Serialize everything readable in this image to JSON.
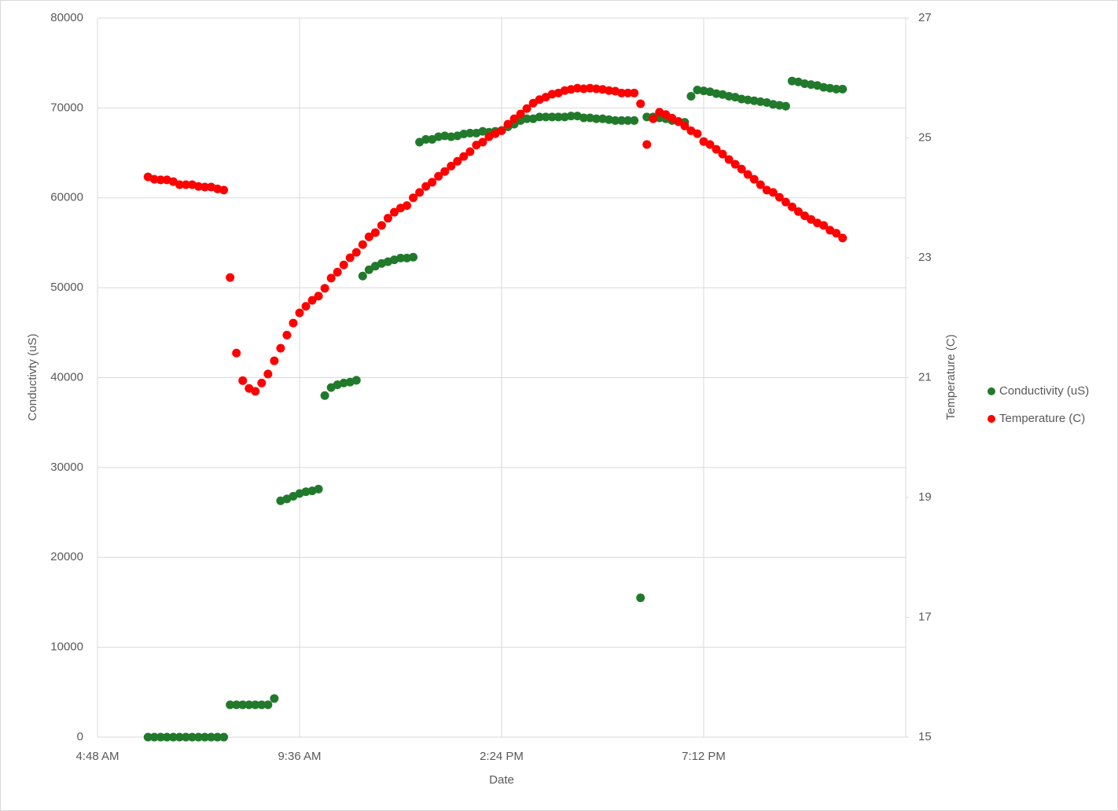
{
  "chart_data": {
    "type": "scatter",
    "x_label": "Date",
    "y_label": "Conductivty (uS)",
    "y2_label": "Temperature (C)",
    "xlim": [
      288,
      1440
    ],
    "xticks": [
      {
        "value": 288,
        "label": "4:48 AM"
      },
      {
        "value": 576,
        "label": "9:36 AM"
      },
      {
        "value": 864,
        "label": "2:24 PM"
      },
      {
        "value": 1152,
        "label": "7:12 PM"
      }
    ],
    "ylim": [
      0,
      80000
    ],
    "yticks": [
      0,
      10000,
      20000,
      30000,
      40000,
      50000,
      60000,
      70000,
      80000
    ],
    "y2lim": [
      15,
      27
    ],
    "y2ticks": [
      15,
      17,
      19,
      21,
      23,
      25,
      27
    ],
    "grid": true,
    "legend": "right",
    "x": [
      360,
      369,
      378,
      387,
      396,
      405,
      414,
      423,
      432,
      441,
      450,
      459,
      468,
      477,
      486,
      495,
      504,
      513,
      522,
      531,
      540,
      549,
      558,
      567,
      576,
      585,
      594,
      603,
      612,
      621,
      630,
      639,
      648,
      657,
      666,
      675,
      684,
      693,
      702,
      711,
      720,
      729,
      738,
      747,
      756,
      765,
      774,
      783,
      792,
      801,
      810,
      819,
      828,
      837,
      846,
      855,
      864,
      873,
      882,
      891,
      900,
      909,
      918,
      927,
      936,
      945,
      954,
      963,
      972,
      981,
      990,
      999,
      1008,
      1017,
      1026,
      1035,
      1044,
      1053,
      1062,
      1071,
      1080,
      1089,
      1098,
      1107,
      1116,
      1125,
      1134,
      1143,
      1152,
      1161,
      1170,
      1179,
      1188,
      1197,
      1206,
      1215,
      1224,
      1233,
      1242,
      1251,
      1260,
      1269,
      1278,
      1287,
      1296,
      1305,
      1314,
      1323,
      1332,
      1341,
      1350
    ],
    "series": [
      {
        "name": "Conductivity (uS)",
        "color": "#217a2b",
        "axis": "y",
        "values": [
          0,
          0,
          0,
          0,
          0,
          0,
          0,
          0,
          0,
          0,
          0,
          0,
          0,
          3600,
          3600,
          3600,
          3600,
          3600,
          3600,
          3600,
          4300,
          26300,
          26500,
          26800,
          27100,
          27300,
          27400,
          27600,
          38000,
          38900,
          39200,
          39400,
          39500,
          39700,
          51300,
          52000,
          52400,
          52700,
          52900,
          53100,
          53300,
          53300,
          53400,
          66200,
          66500,
          66500,
          66800,
          66900,
          66800,
          66900,
          67100,
          67200,
          67200,
          67400,
          67300,
          67400,
          67500,
          67900,
          68200,
          68600,
          68800,
          68800,
          69000,
          69000,
          69000,
          69000,
          69000,
          69100,
          69100,
          68900,
          68900,
          68800,
          68800,
          68700,
          68600,
          68600,
          68600,
          68600,
          15500,
          69000,
          69000,
          68900,
          68800,
          68600,
          68500,
          68400,
          71300,
          72000,
          71900,
          71800,
          71600,
          71500,
          71300,
          71200,
          71000,
          70900,
          70800,
          70700,
          70600,
          70400,
          70300,
          70200,
          73000,
          72900,
          72700,
          72600,
          72500,
          72300,
          72200,
          72100,
          72100
        ]
      },
      {
        "name": "Temperature (C)",
        "color": "#ff0000",
        "axis": "y2",
        "values": [
          24.35,
          24.31,
          24.3,
          24.3,
          24.27,
          24.22,
          24.22,
          24.22,
          24.19,
          24.18,
          24.18,
          24.15,
          24.13,
          22.67,
          21.41,
          20.95,
          20.82,
          20.77,
          20.91,
          21.06,
          21.28,
          21.49,
          21.71,
          21.91,
          22.08,
          22.19,
          22.29,
          22.36,
          22.49,
          22.66,
          22.76,
          22.88,
          23.0,
          23.09,
          23.22,
          23.35,
          23.42,
          23.54,
          23.66,
          23.76,
          23.83,
          23.87,
          24.0,
          24.09,
          24.19,
          24.26,
          24.36,
          24.44,
          24.53,
          24.61,
          24.69,
          24.77,
          24.88,
          24.93,
          25.02,
          25.07,
          25.12,
          25.23,
          25.32,
          25.4,
          25.49,
          25.58,
          25.64,
          25.68,
          25.73,
          25.75,
          25.79,
          25.81,
          25.83,
          25.82,
          25.83,
          25.82,
          25.81,
          25.79,
          25.78,
          25.75,
          25.75,
          25.75,
          25.57,
          24.89,
          25.32,
          25.43,
          25.39,
          25.33,
          25.27,
          25.2,
          25.12,
          25.07,
          24.94,
          24.89,
          24.81,
          24.73,
          24.64,
          24.56,
          24.48,
          24.39,
          24.31,
          24.22,
          24.13,
          24.09,
          24.01,
          23.93,
          23.85,
          23.77,
          23.7,
          23.64,
          23.58,
          23.54,
          23.46,
          23.41,
          23.33
        ]
      }
    ]
  }
}
